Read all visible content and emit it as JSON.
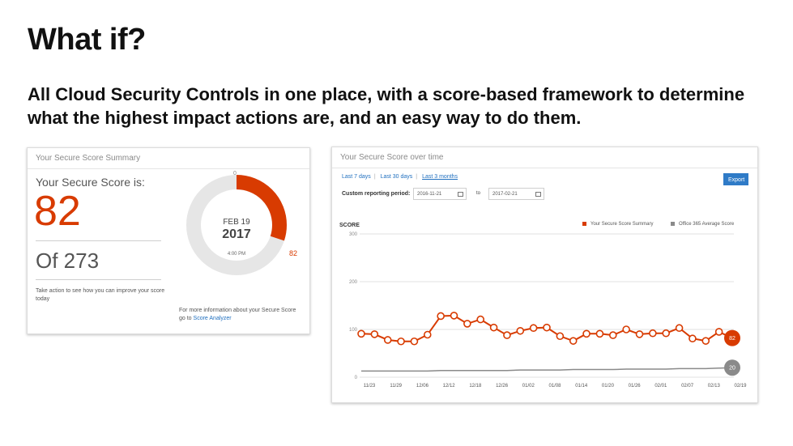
{
  "slide": {
    "title": "What if?",
    "body": "All Cloud Security Controls in one place, with a score-based framework to determine what the highest impact actions are, and an easy way to do them."
  },
  "summary_card": {
    "header": "Your Secure Score Summary",
    "caption": "Your Secure Score is:",
    "score": "82",
    "total": "Of 273",
    "action_text": "Take action to see how you can improve your score today",
    "donut": {
      "start_label": "0",
      "score_label": "82",
      "score_fraction": 0.3004,
      "date": "FEB 19",
      "year": "2017",
      "time": "4:00 PM"
    },
    "more_info_text": "For more information about your Secure Score go to",
    "more_info_link": "Score Analyzer",
    "colors": {
      "accent": "#d83b01",
      "track": "#e6e6e6"
    }
  },
  "over_time_card": {
    "header": "Your Secure Score over time",
    "ranges": [
      "Last 7 days",
      "Last 30 days",
      "Last 3 months"
    ],
    "export_label": "Export",
    "custom_label": "Custom reporting period:",
    "from_date": "2016-11-21",
    "to_label": "to",
    "to_date": "2017-02-21",
    "y_title": "SCORE",
    "legend": [
      {
        "label": "Your Secure Score Summary",
        "color": "#d83b01"
      },
      {
        "label": "Office 365 Average Score",
        "color": "#8a8a8a"
      }
    ]
  },
  "chart_data": {
    "type": "line",
    "ylabel": "SCORE",
    "ylim": [
      0,
      300
    ],
    "yticks": [
      0,
      100,
      200,
      300
    ],
    "x_tick_labels": [
      "11/23",
      "11/29",
      "12/06",
      "12/12",
      "12/18",
      "12/26",
      "01/02",
      "01/08",
      "01/14",
      "01/20",
      "01/26",
      "02/01",
      "02/07",
      "02/13",
      "02/19"
    ],
    "series": [
      {
        "name": "Your Secure Score Summary",
        "color": "#d83b01",
        "values": [
          91,
          90,
          78,
          75,
          75,
          89,
          128,
          129,
          112,
          121,
          104,
          88,
          97,
          103,
          104,
          86,
          76,
          91,
          91,
          88,
          100,
          90,
          92,
          92,
          103,
          81,
          76,
          95,
          82
        ],
        "last_label": "82"
      },
      {
        "name": "Office 365 Average Score",
        "color": "#8a8a8a",
        "values": [
          13,
          13,
          13,
          13,
          13,
          13,
          14,
          14,
          14,
          14,
          14,
          14,
          15,
          15,
          15,
          15,
          16,
          16,
          16,
          16,
          17,
          17,
          17,
          17,
          18,
          18,
          18,
          19,
          20
        ],
        "last_label": "20"
      }
    ]
  }
}
